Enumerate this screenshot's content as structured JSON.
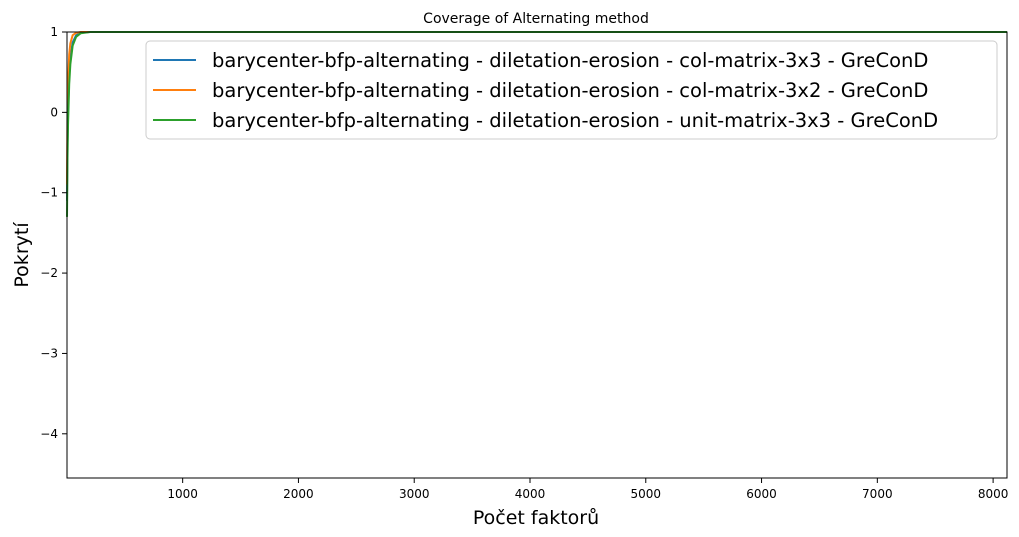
{
  "chart_data": {
    "type": "line",
    "title": "Coverage of Alternating method",
    "xlabel": "Počet faktorů",
    "ylabel": "Pokrytí",
    "xlim": [
      1,
      8120
    ],
    "ylim": [
      -4.55,
      1.0
    ],
    "xticks": [
      1000,
      2000,
      3000,
      4000,
      5000,
      6000,
      7000,
      8000
    ],
    "xtick_labels": [
      "1000",
      "2000",
      "3000",
      "4000",
      "5000",
      "6000",
      "7000",
      "8000"
    ],
    "yticks": [
      1,
      0,
      -1,
      -2,
      -3,
      -4
    ],
    "ytick_labels": [
      "1",
      "0",
      "−1",
      "−2",
      "−3",
      "−4"
    ],
    "grid": false,
    "legend_position": "top-right",
    "series": [
      {
        "name": "barycenter-bfp-alternating - diletation-erosion - col-matrix-3x3 - GreConD",
        "color": "#1f77b4",
        "x": [
          1,
          5,
          10,
          20,
          30,
          50,
          80,
          120,
          200,
          300,
          500,
          1000,
          2000,
          4000,
          6000,
          8120
        ],
        "y": [
          -1.1,
          -0.4,
          0.0,
          0.45,
          0.68,
          0.87,
          0.96,
          0.99,
          1.0,
          1.0,
          1.0,
          1.0,
          1.0,
          1.0,
          1.0,
          1.0
        ]
      },
      {
        "name": "barycenter-bfp-alternating - diletation-erosion - col-matrix-3x2 - GreConD",
        "color": "#ff7f0e",
        "x": [
          1,
          5,
          10,
          20,
          30,
          50,
          80,
          120,
          200,
          300,
          500,
          1000,
          2000,
          4000,
          6000,
          8120
        ],
        "y": [
          -0.9,
          -0.1,
          0.35,
          0.72,
          0.86,
          0.96,
          0.99,
          1.0,
          1.0,
          1.0,
          1.0,
          1.0,
          1.0,
          1.0,
          1.0,
          1.0
        ]
      },
      {
        "name": "barycenter-bfp-alternating - diletation-erosion - unit-matrix-3x3 - GreConD",
        "color": "#2ca02c",
        "x": [
          1,
          5,
          10,
          20,
          30,
          50,
          80,
          120,
          200,
          300,
          500,
          1000,
          2000,
          4000,
          6000,
          8120
        ],
        "y": [
          -1.3,
          -0.6,
          -0.15,
          0.35,
          0.6,
          0.83,
          0.94,
          0.985,
          1.0,
          1.0,
          1.0,
          1.0,
          1.0,
          1.0,
          1.0,
          1.0
        ]
      }
    ]
  }
}
